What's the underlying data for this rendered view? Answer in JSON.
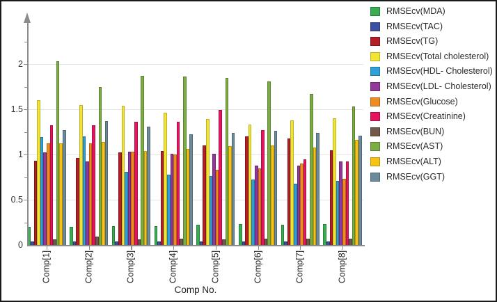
{
  "chart_data": {
    "type": "bar",
    "title": "",
    "xlabel": "Comp No.",
    "ylabel": "",
    "categories": [
      "Comp[1]",
      "Comp[2]",
      "Comp[3]",
      "Comp[4]",
      "Comp[5]",
      "Comp[6]",
      "Comp[7]",
      "Comp[8]"
    ],
    "series": [
      {
        "name": "RMSEcv(MDA)",
        "color": "#3aad53",
        "border": "#27813c",
        "values": [
          0.2,
          0.2,
          0.21,
          0.21,
          0.22,
          0.23,
          0.22,
          0.23
        ]
      },
      {
        "name": "RMSEcv(TAC)",
        "color": "#3c4fa0",
        "border": "#2b3a79",
        "values": [
          0.04,
          0.04,
          0.04,
          0.04,
          0.04,
          0.04,
          0.04,
          0.04
        ]
      },
      {
        "name": "RMSEcv(TG)",
        "color": "#b41f27",
        "border": "#7f161c",
        "values": [
          0.93,
          0.96,
          1.02,
          1.04,
          1.1,
          1.2,
          1.18,
          1.05
        ]
      },
      {
        "name": "RMSEcv(Total cholesterol)",
        "color": "#f1e434",
        "border": "#bdb224",
        "values": [
          1.6,
          1.55,
          1.54,
          1.46,
          1.39,
          1.33,
          1.38,
          1.4
        ]
      },
      {
        "name": "RMSEcv(HDL- Cholesterol)",
        "color": "#2f9fd7",
        "border": "#2277a3",
        "values": [
          1.19,
          1.2,
          0.81,
          0.78,
          0.76,
          0.72,
          0.68,
          0.71
        ]
      },
      {
        "name": "RMSEcv(LDL- Cholesterol)",
        "color": "#93389b",
        "border": "#6b2871",
        "values": [
          1.02,
          0.92,
          1.03,
          1.01,
          1.01,
          0.88,
          0.88,
          0.92
        ]
      },
      {
        "name": "RMSEcv(Glucose)",
        "color": "#f08b21",
        "border": "#b56411",
        "values": [
          1.12,
          1.12,
          1.03,
          1.0,
          0.83,
          0.85,
          0.9,
          0.73
        ]
      },
      {
        "name": "RMSEcv(Creatinine)",
        "color": "#e61460",
        "border": "#a90e45",
        "values": [
          1.32,
          1.32,
          1.36,
          1.36,
          1.49,
          1.27,
          0.95,
          0.92
        ]
      },
      {
        "name": "RMSEcv(BUN)",
        "color": "#73594a",
        "border": "#503d33",
        "values": [
          0.06,
          0.09,
          0.06,
          0.07,
          0.06,
          0.07,
          0.07,
          0.07
        ]
      },
      {
        "name": "RMSEcv(AST)",
        "color": "#7cad45",
        "border": "#5a8230",
        "values": [
          2.03,
          1.75,
          1.87,
          1.86,
          1.85,
          1.81,
          1.67,
          1.53
        ]
      },
      {
        "name": "RMSEcv(ALT)",
        "color": "#f6c214",
        "border": "#bd940c",
        "values": [
          1.12,
          1.14,
          1.04,
          1.06,
          1.09,
          1.1,
          1.08,
          1.16
        ]
      },
      {
        "name": "RMSEcv(GGT)",
        "color": "#6c8a99",
        "border": "#4e6773",
        "values": [
          1.27,
          1.37,
          1.31,
          1.22,
          1.24,
          1.26,
          1.24,
          1.21
        ]
      }
    ],
    "ylim": [
      0,
      2.45
    ],
    "yticks": [
      0,
      0.5,
      1,
      1.5,
      2
    ],
    "ytick_labels": [
      "0",
      "0.5",
      "1",
      "1.5",
      "2"
    ],
    "minor_tick_step": 0.25,
    "grid": true,
    "legend_position": "right-top"
  }
}
